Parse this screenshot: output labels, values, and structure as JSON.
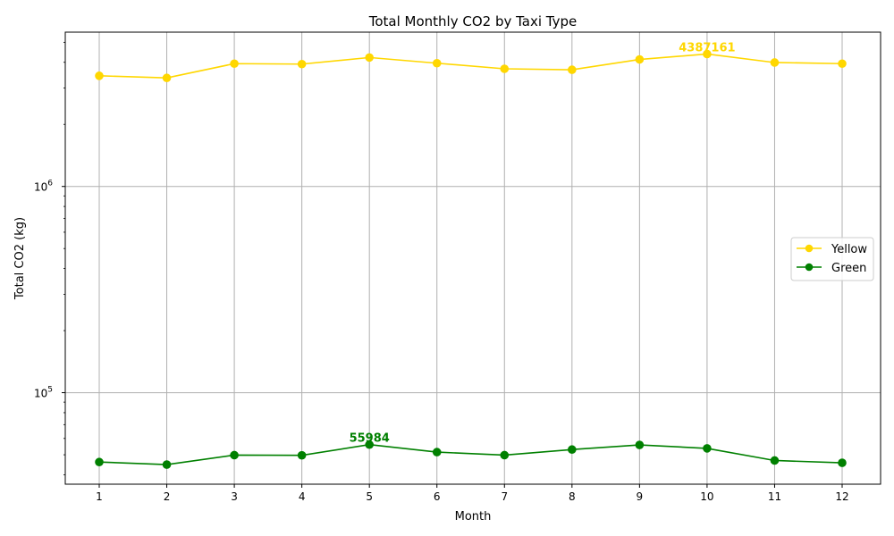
{
  "chart_data": {
    "type": "line",
    "title": "Total Monthly CO2 by Taxi Type",
    "xlabel": "Month",
    "ylabel": "Total CO2 (kg)",
    "yscale": "log",
    "ylim": [
      36000,
      5600000
    ],
    "x": [
      1,
      2,
      3,
      4,
      5,
      6,
      7,
      8,
      9,
      10,
      11,
      12
    ],
    "xtick_labels": [
      "1",
      "2",
      "3",
      "4",
      "5",
      "6",
      "7",
      "8",
      "9",
      "10",
      "11",
      "12"
    ],
    "ytick_major": [
      100000,
      1000000
    ],
    "ytick_labels": [
      {
        "base": "10",
        "exp": "5"
      },
      {
        "base": "10",
        "exp": "6"
      }
    ],
    "grid": true,
    "legend_position": "center-right",
    "series": [
      {
        "name": "Yellow",
        "color": "#FFD700",
        "marker": "circle",
        "values": [
          3440000,
          3360000,
          3940000,
          3920000,
          4220000,
          3960000,
          3720000,
          3680000,
          4130000,
          4387161,
          3990000,
          3940000
        ],
        "annotation": {
          "month": 10,
          "text": "4387161"
        }
      },
      {
        "name": "Green",
        "color": "#008000",
        "marker": "circle",
        "values": [
          46100,
          44800,
          49800,
          49700,
          55984,
          51500,
          49800,
          53000,
          55800,
          53700,
          46900,
          45700
        ],
        "annotation": {
          "month": 5,
          "text": "55984"
        }
      }
    ]
  }
}
